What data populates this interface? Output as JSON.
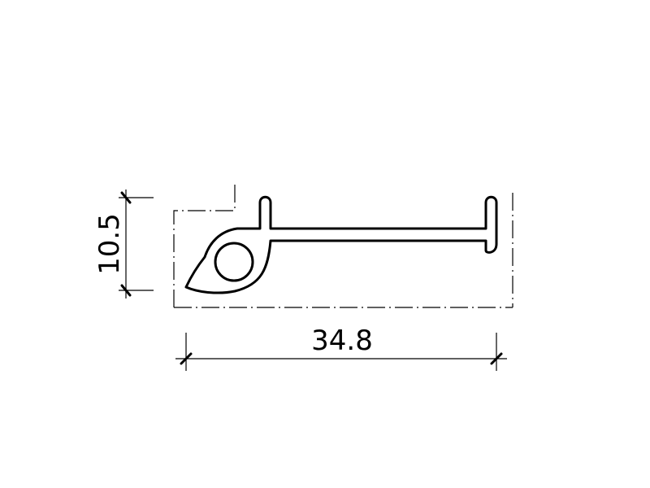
{
  "dimensions": {
    "height_label": "10.5",
    "width_label": "34.8"
  }
}
